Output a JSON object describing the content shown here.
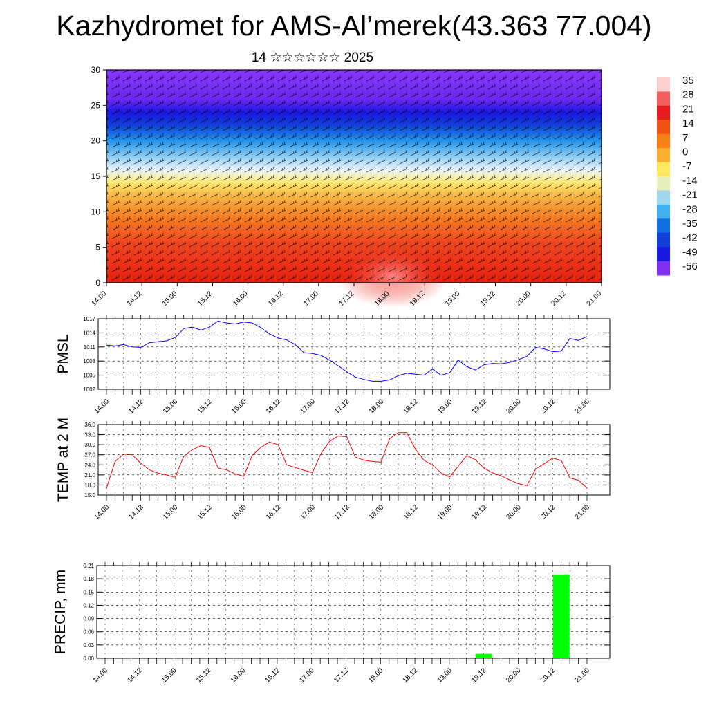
{
  "title": "Kazhydromet for AMS-Al’merek(43.363 77.004)",
  "subtitle": "14 ☆☆☆☆☆☆ 2025",
  "time_labels": [
    "14.00",
    "14.12",
    "15.00",
    "15.12",
    "16.00",
    "16.12",
    "17.00",
    "17.12",
    "18.00",
    "18.12",
    "19.00",
    "19.12",
    "20.00",
    "20.12",
    "21.00"
  ],
  "chart_data": [
    {
      "type": "heatmap",
      "description": "Vertical cross-section of temperature with wind barbs",
      "ylim": [
        0,
        30
      ],
      "yticks": [
        "0",
        "5",
        "10",
        "15",
        "20",
        "25",
        "30"
      ],
      "colorbar_labels": [
        "35",
        "28",
        "21",
        "14",
        "7",
        "0",
        "-7",
        "-14",
        "-21",
        "-28",
        "-35",
        "-42",
        "-49",
        "-56"
      ],
      "colorbar_colors": [
        "#ffd0d0",
        "#f06060",
        "#e41e1e",
        "#f05010",
        "#f88018",
        "#fbb030",
        "#ffe860",
        "#e8f0c0",
        "#a0d8f0",
        "#40b0f0",
        "#1070e0",
        "#1040d8",
        "#1818e0",
        "#8030f0"
      ]
    },
    {
      "type": "line",
      "ylabel": "PMSL",
      "ylim": [
        1002,
        1017
      ],
      "yticks": [
        "1002",
        "1005",
        "1008",
        "1011",
        "1014",
        "1017"
      ],
      "color": "#0000ff",
      "x_hours": [
        0,
        3,
        6,
        9,
        12,
        15,
        18,
        21,
        24,
        27,
        30,
        33,
        36,
        39,
        42,
        45,
        48,
        51,
        54,
        57,
        60,
        63,
        66,
        69,
        72,
        75,
        78,
        81,
        84,
        87,
        90,
        93,
        96,
        99,
        102,
        105,
        108,
        111,
        114,
        117,
        120,
        123,
        126,
        129,
        132,
        135,
        138,
        141,
        144,
        147,
        150,
        153,
        156,
        159,
        162,
        165,
        168
      ],
      "values": [
        1011.4,
        1011.2,
        1011.5,
        1011.0,
        1010.9,
        1011.9,
        1012.1,
        1012.3,
        1013.0,
        1014.9,
        1015.2,
        1014.6,
        1015.2,
        1016.5,
        1016.1,
        1015.9,
        1016.3,
        1016.1,
        1015.1,
        1013.8,
        1012.9,
        1012.5,
        1011.5,
        1009.8,
        1009.6,
        1009.2,
        1008.2,
        1007.0,
        1005.7,
        1004.6,
        1004.1,
        1003.7,
        1003.7,
        1004.0,
        1004.9,
        1005.4,
        1005.2,
        1005.0,
        1006.3,
        1005.0,
        1005.5,
        1008.2,
        1006.8,
        1006.1,
        1007.2,
        1007.5,
        1007.4,
        1007.7,
        1008.3,
        1009.0,
        1010.9,
        1010.6,
        1010.0,
        1010.1,
        1012.8,
        1012.4,
        1013.2
      ]
    },
    {
      "type": "line",
      "ylabel": "TEMP at 2 M",
      "ylim": [
        15.0,
        36.0
      ],
      "yticks": [
        "15.0",
        "18.0",
        "21.0",
        "24.0",
        "27.0",
        "30.0",
        "33.0",
        "36.0"
      ],
      "color": "#ff0000",
      "x_hours": [
        0,
        3,
        6,
        9,
        12,
        15,
        18,
        21,
        24,
        27,
        30,
        33,
        36,
        39,
        42,
        45,
        48,
        51,
        54,
        57,
        60,
        63,
        66,
        69,
        72,
        75,
        78,
        81,
        84,
        87,
        90,
        93,
        96,
        99,
        102,
        105,
        108,
        111,
        114,
        117,
        120,
        123,
        126,
        129,
        132,
        135,
        138,
        141,
        144,
        147,
        150,
        153,
        156,
        159,
        162,
        165,
        168
      ],
      "values": [
        17.0,
        25.0,
        27.2,
        27.0,
        24.5,
        22.5,
        21.5,
        21.0,
        20.3,
        26.5,
        28.5,
        29.7,
        29.2,
        23.0,
        22.5,
        21.3,
        20.6,
        26.9,
        29.2,
        30.8,
        30.0,
        24.0,
        23.2,
        22.4,
        21.7,
        27.4,
        31.0,
        32.6,
        32.4,
        26.3,
        25.4,
        25.0,
        24.8,
        31.8,
        33.6,
        33.6,
        28.7,
        25.4,
        23.9,
        21.6,
        20.4,
        23.6,
        26.8,
        25.5,
        23.0,
        21.6,
        20.7,
        19.5,
        18.4,
        17.8,
        22.7,
        24.3,
        26.0,
        25.3,
        20.1,
        19.4,
        17.1
      ]
    },
    {
      "type": "bar",
      "ylabel": "PRECIP, mm",
      "ylim": [
        0.0,
        0.21
      ],
      "yticks": [
        "0.00",
        "0.03",
        "0.06",
        "0.09",
        "0.12",
        "0.15",
        "0.18",
        "0.21"
      ],
      "color": "#00ff00",
      "x_hours": [
        132,
        159
      ],
      "values": [
        0.01,
        0.19
      ]
    }
  ]
}
